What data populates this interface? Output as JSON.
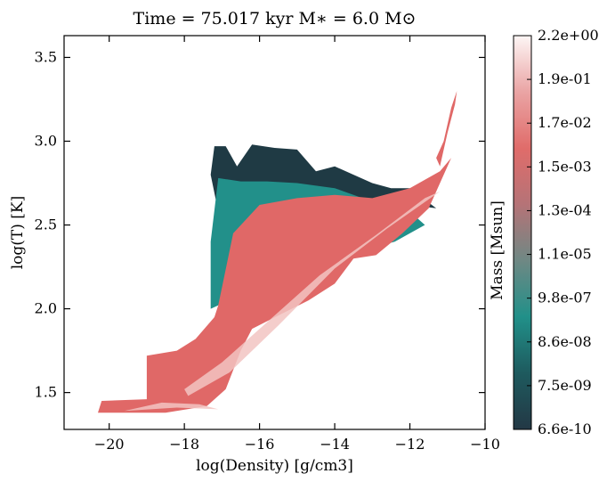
{
  "chart_data": {
    "type": "heatmap",
    "title": "Time = 75.017 kyr   M$_*$ = 6.0 M$_\\odot$",
    "title_display": "Time = 75.017 kyr    M∗ = 6.0 M⊙",
    "xlabel": "log(Density) [g/cm3]",
    "ylabel": "log(T) [K]",
    "xlim": [
      -21.2,
      -10
    ],
    "ylim": [
      1.28,
      3.63
    ],
    "xticks": [
      -20,
      -18,
      -16,
      -14,
      -12,
      -10
    ],
    "xtick_labels": [
      "−20",
      "−18",
      "−16",
      "−14",
      "−12",
      "−10"
    ],
    "yticks": [
      1.5,
      2.0,
      2.5,
      3.0,
      3.5
    ],
    "ytick_labels": [
      "1.5",
      "2.0",
      "2.5",
      "3.0",
      "3.5"
    ],
    "colorbar": {
      "label": "Mass [Msun]",
      "tick_labels": [
        "6.6e-10",
        "7.5e-09",
        "8.6e-08",
        "9.8e-07",
        "1.1e-05",
        "1.3e-04",
        "1.5e-03",
        "1.7e-02",
        "1.9e-01",
        "2.2e+00"
      ],
      "colormap": [
        "#233845",
        "#1e5a5e",
        "#219089",
        "#6f8884",
        "#b57377",
        "#e06c6a",
        "#eaa4a4",
        "#fdf6f5"
      ]
    },
    "regions": [
      {
        "name": "hot-diffuse-gas",
        "color_level": "low-mass",
        "polygon": [
          [
            -17.1,
            2.58
          ],
          [
            -17.3,
            2.8
          ],
          [
            -17.2,
            2.97
          ],
          [
            -16.9,
            2.97
          ],
          [
            -16.6,
            2.85
          ],
          [
            -16.2,
            2.98
          ],
          [
            -15.6,
            2.96
          ],
          [
            -15.0,
            2.95
          ],
          [
            -14.5,
            2.82
          ],
          [
            -14.0,
            2.85
          ],
          [
            -13.5,
            2.8
          ],
          [
            -13.0,
            2.75
          ],
          [
            -12.5,
            2.72
          ],
          [
            -12.0,
            2.72
          ],
          [
            -11.3,
            2.6
          ],
          [
            -12.0,
            2.62
          ],
          [
            -13.0,
            2.62
          ],
          [
            -14.5,
            2.66
          ],
          [
            -16.0,
            2.6
          ],
          [
            -17.0,
            2.5
          ]
        ]
      },
      {
        "name": "warm-gas",
        "color_level": "intermediate-mass",
        "polygon": [
          [
            -17.1,
            2.78
          ],
          [
            -16.5,
            2.76
          ],
          [
            -15.8,
            2.76
          ],
          [
            -15.0,
            2.75
          ],
          [
            -14.0,
            2.72
          ],
          [
            -13.0,
            2.64
          ],
          [
            -12.2,
            2.62
          ],
          [
            -11.6,
            2.5
          ],
          [
            -12.4,
            2.4
          ],
          [
            -13.2,
            2.35
          ],
          [
            -14.0,
            2.3
          ],
          [
            -15.0,
            2.3
          ],
          [
            -15.6,
            2.38
          ],
          [
            -16.2,
            2.45
          ],
          [
            -16.8,
            2.2
          ],
          [
            -17.1,
            2.02
          ],
          [
            -17.3,
            2.0
          ],
          [
            -17.3,
            2.4
          ]
        ]
      },
      {
        "name": "dense-gas-sequence",
        "color_level": "high-mass",
        "polygon": [
          [
            -17.1,
            2.02
          ],
          [
            -16.7,
            2.45
          ],
          [
            -16.0,
            2.62
          ],
          [
            -15.0,
            2.66
          ],
          [
            -14.0,
            2.68
          ],
          [
            -13.0,
            2.66
          ],
          [
            -12.0,
            2.72
          ],
          [
            -11.2,
            2.82
          ],
          [
            -10.9,
            2.9
          ],
          [
            -11.5,
            2.6
          ],
          [
            -12.2,
            2.45
          ],
          [
            -12.9,
            2.32
          ],
          [
            -13.5,
            2.3
          ],
          [
            -14.0,
            2.15
          ],
          [
            -14.7,
            2.05
          ],
          [
            -15.5,
            1.96
          ],
          [
            -16.2,
            1.88
          ],
          [
            -16.5,
            1.75
          ],
          [
            -16.9,
            1.52
          ],
          [
            -17.4,
            1.42
          ],
          [
            -18.5,
            1.38
          ],
          [
            -20.3,
            1.38
          ],
          [
            -20.2,
            1.45
          ],
          [
            -19.0,
            1.46
          ],
          [
            -19.0,
            1.72
          ],
          [
            -18.2,
            1.75
          ],
          [
            -17.7,
            1.82
          ],
          [
            -17.2,
            1.95
          ]
        ]
      },
      {
        "name": "cold-dense-ridge",
        "color_level": "peak-mass",
        "polygon": [
          [
            -19.6,
            1.39
          ],
          [
            -18.2,
            1.41
          ],
          [
            -17.1,
            1.4
          ],
          [
            -17.6,
            1.43
          ],
          [
            -18.6,
            1.44
          ]
        ]
      },
      {
        "name": "diagonal-ridge",
        "color_level": "peak-mass",
        "polygon": [
          [
            -17.9,
            1.48
          ],
          [
            -16.8,
            1.62
          ],
          [
            -15.5,
            1.9
          ],
          [
            -14.0,
            2.24
          ],
          [
            -12.6,
            2.48
          ],
          [
            -11.2,
            2.7
          ],
          [
            -11.6,
            2.66
          ],
          [
            -12.9,
            2.44
          ],
          [
            -14.4,
            2.2
          ],
          [
            -15.8,
            1.92
          ],
          [
            -17.0,
            1.68
          ],
          [
            -18.0,
            1.52
          ]
        ]
      },
      {
        "name": "high-temperature-tail",
        "color_level": "high-mass",
        "polygon": [
          [
            -11.2,
            2.85
          ],
          [
            -11.0,
            3.05
          ],
          [
            -10.8,
            3.22
          ],
          [
            -10.75,
            3.3
          ],
          [
            -10.9,
            3.2
          ],
          [
            -11.1,
            3.0
          ],
          [
            -11.3,
            2.9
          ]
        ]
      }
    ]
  }
}
